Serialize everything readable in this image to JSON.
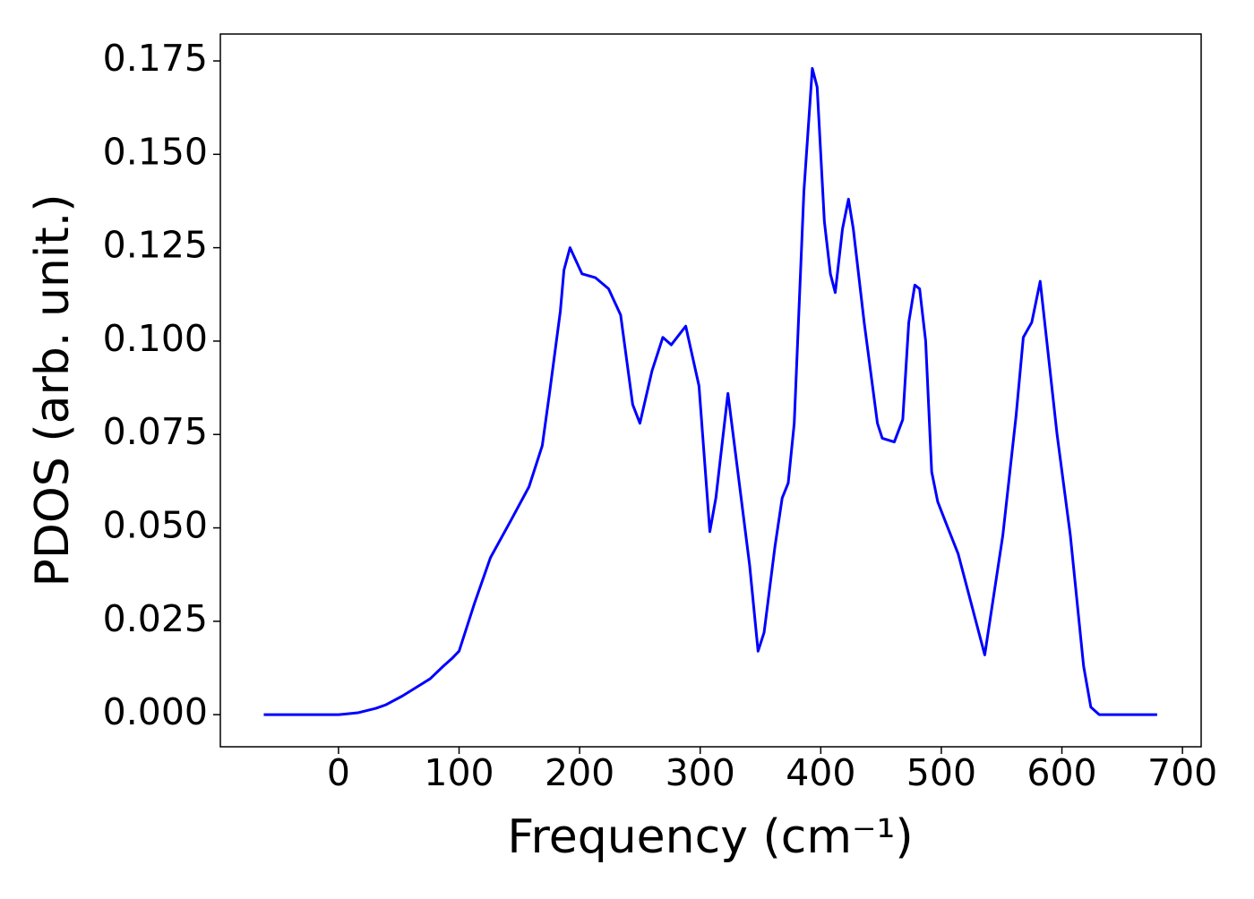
{
  "chart_data": {
    "type": "line",
    "xlabel": "Frequency (cm⁻¹)",
    "ylabel": "PDOS (arb. unit.)",
    "x": [
      -62,
      0,
      16,
      31,
      39,
      53,
      68,
      76,
      87,
      94,
      100,
      113,
      126,
      143,
      158,
      169,
      175,
      184,
      187,
      192,
      202,
      213,
      224,
      234,
      244,
      250,
      260,
      269,
      276,
      288,
      299,
      308,
      313,
      323,
      341,
      348,
      353,
      362,
      368,
      373,
      378,
      386,
      393,
      397,
      403,
      408,
      412,
      418,
      423,
      427,
      436,
      447,
      451,
      461,
      468,
      473,
      478,
      482,
      487,
      492,
      497,
      503,
      514,
      536,
      551,
      562,
      568,
      575,
      582,
      596,
      607,
      618,
      624,
      631,
      679
    ],
    "series": [
      {
        "name": "PDOS",
        "color": "#0000ff",
        "values": [
          0,
          0,
          0.0005,
          0.0017,
          0.0026,
          0.005,
          0.008,
          0.0096,
          0.013,
          0.015,
          0.017,
          0.03,
          0.042,
          0.052,
          0.061,
          0.072,
          0.086,
          0.108,
          0.119,
          0.125,
          0.118,
          0.117,
          0.114,
          0.107,
          0.083,
          0.078,
          0.092,
          0.101,
          0.099,
          0.104,
          0.088,
          0.049,
          0.058,
          0.086,
          0.04,
          0.017,
          0.022,
          0.045,
          0.058,
          0.062,
          0.078,
          0.14,
          0.173,
          0.168,
          0.132,
          0.118,
          0.113,
          0.13,
          0.138,
          0.13,
          0.105,
          0.078,
          0.074,
          0.073,
          0.079,
          0.105,
          0.115,
          0.114,
          0.1,
          0.065,
          0.057,
          0.052,
          0.043,
          0.016,
          0.048,
          0.08,
          0.101,
          0.105,
          0.116,
          0.075,
          0.048,
          0.013,
          0.002,
          0,
          0
        ]
      }
    ],
    "xlim": [
      -98,
      715.5
    ],
    "xticks": [
      0,
      100,
      200,
      300,
      400,
      500,
      600,
      700
    ],
    "ylim": [
      -0.0086,
      0.1822
    ],
    "yticks": [
      {
        "value": 0,
        "label": "0.000"
      },
      0.025,
      {
        "value": 0.05,
        "label": "0.050"
      },
      0.075,
      {
        "value": 0.1,
        "label": "0.100"
      },
      0.125,
      {
        "value": 0.15,
        "label": "0.150"
      },
      0.175
    ],
    "grid": false
  }
}
